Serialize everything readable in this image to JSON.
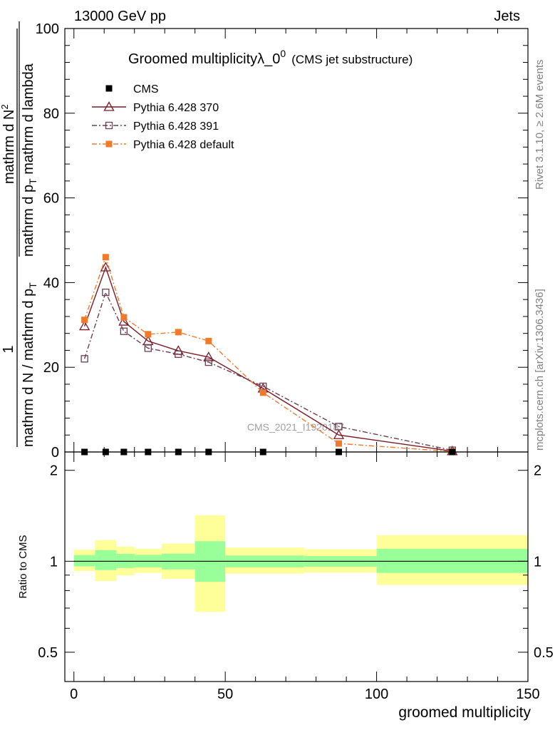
{
  "header": {
    "left": "13000 GeV pp",
    "right": "Jets"
  },
  "side_labels": {
    "rivet": "Rivet 3.1.10, ≥ 2.6M events",
    "mcplots": "mcplots.cern.ch [arXiv:1306.3436]"
  },
  "chart_data": [
    {
      "type": "line",
      "title_main": "Groomed multiplicityλ_0",
      "title_sup": "0",
      "title_sub": "(CMS jet substructure)",
      "watermark": "CMS_2021_I1920187",
      "ylabel_numerator": "1",
      "ylabel_denominator": "mathrm d N / mathrm d p",
      "ylabel_denominator_sub": "T",
      "ylabel_right_part": "mathrm d N",
      "ylabel_right_sup": "2",
      "ylabel_right_den": "mathrm d p",
      "ylabel_right_den_sub": "T",
      "ylabel_right_tail": " mathrm d lambda",
      "ylim": [
        0,
        100
      ],
      "xlim": [
        -3,
        150
      ],
      "yticks": [
        0,
        20,
        40,
        60,
        80,
        100
      ],
      "ytick_labels": [
        "0",
        "20",
        "40",
        "60",
        "80",
        "100"
      ],
      "legend_position": "top-left",
      "series": [
        {
          "name": "CMS",
          "color": "#000000",
          "marker": "square-filled",
          "line": "none",
          "x": [
            3.5,
            10.5,
            16.5,
            24.5,
            34.5,
            44.5,
            62.5,
            87.5,
            125
          ],
          "y": [
            0,
            0,
            0,
            0,
            0,
            0,
            0,
            0,
            0
          ]
        },
        {
          "name": "Pythia 6.428 370",
          "color": "#7b1a26",
          "marker": "triangle-open",
          "line": "solid",
          "x": [
            3.5,
            10.5,
            16.5,
            24.5,
            34.5,
            44.5,
            62.5,
            87.5,
            125
          ],
          "y": [
            29.7,
            43.6,
            30.8,
            26.2,
            23.9,
            22.4,
            15.0,
            4.0,
            0.2
          ]
        },
        {
          "name": "Pythia 6.428 391",
          "color": "#6a3d52",
          "marker": "square-open",
          "line": "dashdot",
          "x": [
            3.5,
            10.5,
            16.5,
            24.5,
            34.5,
            44.5,
            62.5,
            87.5,
            125
          ],
          "y": [
            22.0,
            37.7,
            28.5,
            24.5,
            23.1,
            21.2,
            15.5,
            6.0,
            0.4
          ]
        },
        {
          "name": "Pythia 6.428 default",
          "color": "#f07a2a",
          "marker": "square-filled",
          "line": "dashdot",
          "x": [
            3.5,
            10.5,
            16.5,
            24.5,
            34.5,
            44.5,
            62.5,
            87.5,
            125
          ],
          "y": [
            31.2,
            46.0,
            31.8,
            27.8,
            28.3,
            26.2,
            14.0,
            2.0,
            0.1
          ]
        }
      ]
    },
    {
      "type": "area",
      "ylabel": "Ratio to CMS",
      "xlabel": "groomed multiplicity",
      "ylim": [
        0.4,
        2.3
      ],
      "xlim": [
        -3,
        150
      ],
      "yticks": [
        0.5,
        1,
        2
      ],
      "ytick_labels": [
        "0.5",
        "1",
        "2"
      ],
      "xticks": [
        0,
        50,
        100,
        150
      ],
      "xtick_labels": [
        "0",
        "50",
        "100",
        "150"
      ],
      "reference_line": 1,
      "inner_band_color": "#99ff99",
      "outer_band_color": "#ffff99",
      "bins": [
        {
          "x0": 0,
          "x1": 7,
          "inner": [
            0.962,
            1.048
          ],
          "outer": [
            0.928,
            1.092
          ]
        },
        {
          "x0": 7,
          "x1": 14,
          "inner": [
            0.935,
            1.088
          ],
          "outer": [
            0.86,
            1.175
          ]
        },
        {
          "x0": 14,
          "x1": 20,
          "inner": [
            0.95,
            1.058
          ],
          "outer": [
            0.898,
            1.118
          ]
        },
        {
          "x0": 20,
          "x1": 29,
          "inner": [
            0.955,
            1.05
          ],
          "outer": [
            0.915,
            1.1
          ]
        },
        {
          "x0": 29,
          "x1": 40,
          "inner": [
            0.94,
            1.06
          ],
          "outer": [
            0.875,
            1.145
          ]
        },
        {
          "x0": 40,
          "x1": 50,
          "inner": [
            0.855,
            1.165
          ],
          "outer": [
            0.68,
            1.42
          ]
        },
        {
          "x0": 50,
          "x1": 76,
          "inner": [
            0.955,
            1.045
          ],
          "outer": [
            0.91,
            1.11
          ]
        },
        {
          "x0": 76,
          "x1": 100,
          "inner": [
            0.96,
            1.04
          ],
          "outer": [
            0.918,
            1.095
          ]
        },
        {
          "x0": 100,
          "x1": 150,
          "inner": [
            0.915,
            1.1
          ],
          "outer": [
            0.835,
            1.22
          ]
        }
      ]
    }
  ]
}
